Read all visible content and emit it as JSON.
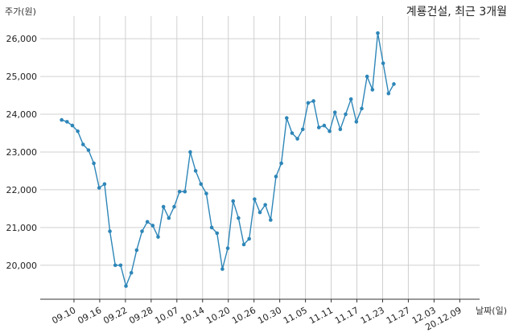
{
  "chart_data": {
    "type": "line",
    "title": "계룡건설, 최근 3개월",
    "ylabel": "주가(원)",
    "xlabel": "날짜(일)",
    "ylim": [
      19100,
      26600
    ],
    "yticks": [
      20000,
      21000,
      22000,
      23000,
      24000,
      25000,
      26000
    ],
    "ytick_labels": [
      "20,000",
      "21,000",
      "22,000",
      "23,000",
      "24,000",
      "25,000",
      "26,000"
    ],
    "xtick_labels": [
      "09.10",
      "09.16",
      "09.22",
      "09.28",
      "10.07",
      "10.14",
      "10.20",
      "10.26",
      "10.30",
      "11.05",
      "11.11",
      "11.17",
      "11.23",
      "11.27",
      "12.03",
      "20.12.09"
    ],
    "xtick_positions": [
      2.3,
      7.1,
      11.9,
      16.7,
      21.5,
      26.3,
      31.1,
      35.9,
      40.7,
      45.5,
      50.3,
      55.1,
      59.9,
      64.7,
      69.5,
      74.3
    ],
    "xlim": [
      -4,
      78
    ],
    "grid": true,
    "color": "#2e86b8",
    "series": [
      {
        "values": [
          23850,
          23800,
          23700,
          23550,
          23200,
          23050,
          22700,
          22050,
          22150,
          20900,
          20000,
          20000,
          19450,
          19800,
          20400,
          20900,
          21150,
          21050,
          20750,
          21550,
          21250,
          21550,
          21950,
          21950,
          23000,
          22500,
          22150,
          21900,
          21000,
          20850,
          19900,
          20450,
          21700,
          21250,
          20550,
          20700,
          21750,
          21400,
          21600,
          21200,
          22350,
          22700,
          23900,
          23500,
          23350,
          23600,
          24300,
          24350,
          23650,
          23700,
          23550,
          24050,
          23600,
          24000,
          24400,
          23800,
          24150,
          25000,
          24650,
          26150,
          25350,
          24550,
          24800
        ]
      }
    ]
  }
}
